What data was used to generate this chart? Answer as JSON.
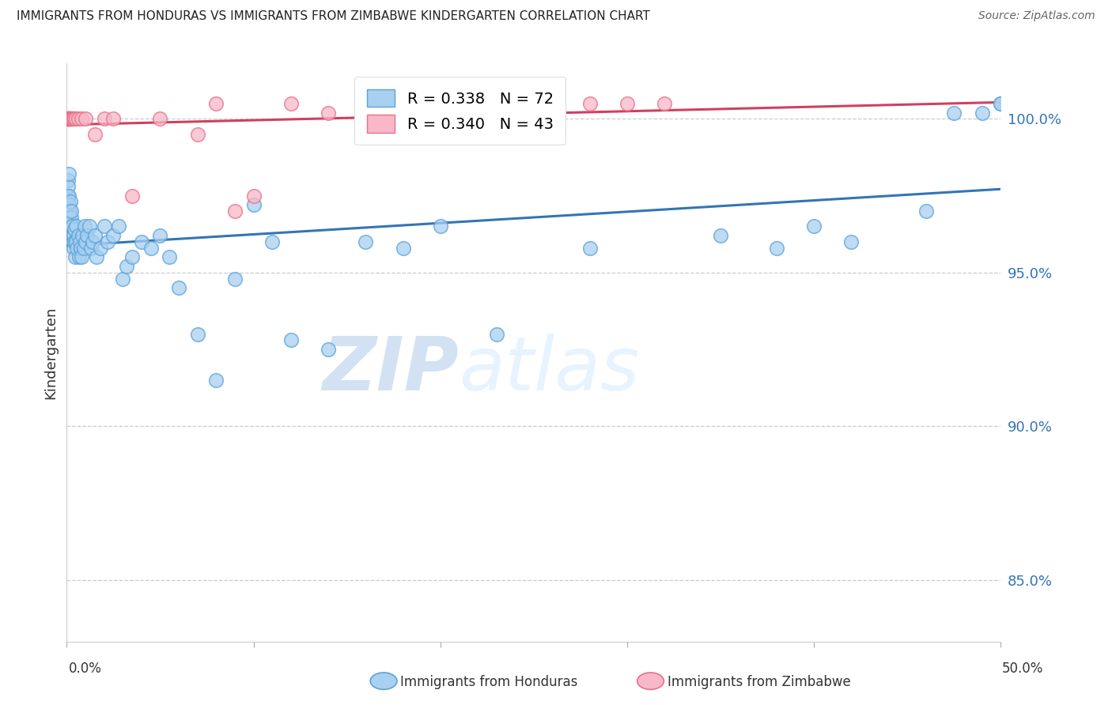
{
  "title": "IMMIGRANTS FROM HONDURAS VS IMMIGRANTS FROM ZIMBABWE KINDERGARTEN CORRELATION CHART",
  "source": "Source: ZipAtlas.com",
  "ylabel": "Kindergarten",
  "legend_blue_R": "R = 0.338",
  "legend_blue_N": "N = 72",
  "legend_pink_R": "R = 0.340",
  "legend_pink_N": "N = 43",
  "blue_color": "#a8d0f0",
  "blue_edge_color": "#5ba3d9",
  "blue_line_color": "#3375b5",
  "pink_color": "#f8b8c8",
  "pink_edge_color": "#e8708a",
  "pink_line_color": "#d04060",
  "watermark_zip": "ZIP",
  "watermark_atlas": "atlas",
  "ytick_labels": [
    "85.0%",
    "90.0%",
    "95.0%",
    "100.0%"
  ],
  "ytick_values": [
    85.0,
    90.0,
    95.0,
    100.0
  ],
  "xlim": [
    0.0,
    50.0
  ],
  "ylim": [
    83.0,
    101.8
  ],
  "blue_x": [
    0.05,
    0.07,
    0.08,
    0.1,
    0.12,
    0.13,
    0.15,
    0.17,
    0.18,
    0.2,
    0.22,
    0.25,
    0.27,
    0.3,
    0.32,
    0.35,
    0.38,
    0.4,
    0.42,
    0.45,
    0.48,
    0.5,
    0.55,
    0.6,
    0.65,
    0.7,
    0.75,
    0.8,
    0.85,
    0.9,
    0.95,
    1.0,
    1.1,
    1.2,
    1.3,
    1.4,
    1.5,
    1.6,
    1.8,
    2.0,
    2.2,
    2.5,
    2.8,
    3.0,
    3.2,
    3.5,
    4.0,
    4.5,
    5.0,
    5.5,
    6.0,
    7.0,
    8.0,
    9.0,
    10.0,
    11.0,
    12.0,
    14.0,
    16.0,
    18.0,
    20.0,
    23.0,
    28.0,
    35.0,
    38.0,
    40.0,
    42.0,
    46.0,
    47.5,
    49.0,
    50.0,
    50.0
  ],
  "blue_y": [
    97.5,
    98.0,
    97.8,
    98.2,
    97.5,
    97.2,
    97.0,
    96.8,
    97.3,
    96.5,
    96.8,
    97.0,
    96.2,
    96.5,
    96.0,
    96.2,
    95.8,
    96.4,
    96.0,
    95.5,
    96.5,
    96.0,
    95.8,
    96.2,
    95.5,
    96.0,
    95.8,
    95.5,
    96.2,
    95.8,
    96.5,
    96.0,
    96.2,
    96.5,
    95.8,
    96.0,
    96.2,
    95.5,
    95.8,
    96.5,
    96.0,
    96.2,
    96.5,
    94.8,
    95.2,
    95.5,
    96.0,
    95.8,
    96.2,
    95.5,
    94.5,
    93.0,
    91.5,
    94.8,
    97.2,
    96.0,
    92.8,
    92.5,
    96.0,
    95.8,
    96.5,
    93.0,
    95.8,
    96.2,
    95.8,
    96.5,
    96.0,
    97.0,
    100.2,
    100.2,
    100.5,
    100.5
  ],
  "pink_x": [
    0.03,
    0.04,
    0.05,
    0.06,
    0.07,
    0.08,
    0.09,
    0.1,
    0.11,
    0.12,
    0.13,
    0.14,
    0.15,
    0.17,
    0.18,
    0.2,
    0.22,
    0.25,
    0.28,
    0.3,
    0.35,
    0.4,
    0.5,
    0.6,
    0.8,
    1.0,
    1.5,
    2.0,
    2.5,
    3.5,
    5.0,
    7.0,
    8.0,
    9.0,
    10.0,
    12.0,
    14.0,
    18.0,
    21.0,
    25.0,
    28.0,
    30.0,
    32.0
  ],
  "pink_y": [
    100.0,
    100.0,
    100.0,
    100.0,
    100.0,
    100.0,
    100.0,
    100.0,
    100.0,
    100.0,
    100.0,
    100.0,
    100.0,
    100.0,
    100.0,
    100.0,
    100.0,
    100.0,
    100.0,
    100.0,
    100.0,
    100.0,
    100.0,
    100.0,
    100.0,
    100.0,
    99.5,
    100.0,
    100.0,
    97.5,
    100.0,
    99.5,
    100.5,
    97.0,
    97.5,
    100.5,
    100.2,
    100.5,
    100.5,
    100.5,
    100.5,
    100.5,
    100.5
  ]
}
